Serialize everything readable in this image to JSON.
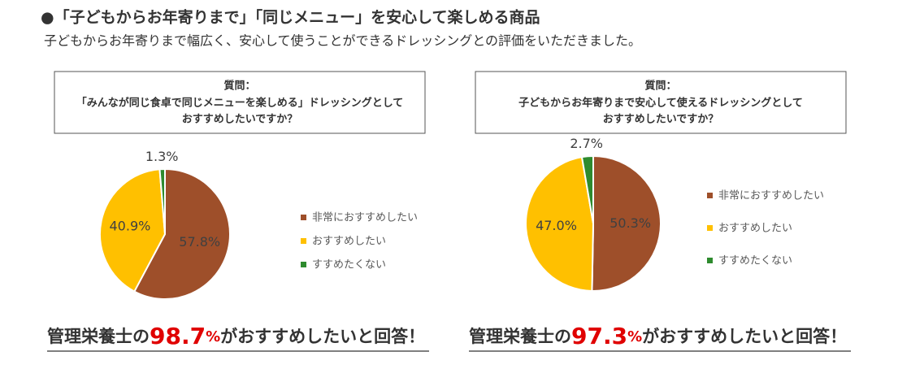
{
  "header": {
    "title": "●「子どもからお年寄りまで」「同じメニュー」を安心して楽しめる商品",
    "subtitle": "子どもからお年寄りまで幅広く、安心して使うことができるドレッシングとの評価をいただきました。"
  },
  "chart_data": [
    {
      "type": "pie",
      "title": "質問：",
      "question": [
        "「みんなが同じ食卓で同じメニューを楽しめる」ドレッシングとして",
        "おすすめしたいですか？"
      ],
      "categories": [
        "非常におすすめしたい",
        "おすすめしたい",
        "すすめたくない"
      ],
      "values": [
        57.8,
        40.9,
        1.3
      ],
      "value_labels": [
        "57.8%",
        "40.9%",
        "1.3%"
      ],
      "label_position": [
        "inside",
        "inside",
        "outside"
      ],
      "colors": [
        "#9e4f2a",
        "#ffc000",
        "#2e8b2e"
      ],
      "legend": "right",
      "footer": {
        "prefix": "管理栄養士の",
        "value": 98.7,
        "unit": "%",
        "suffix": "がおすすめしたいと回答！"
      }
    },
    {
      "type": "pie",
      "title": "質問：",
      "question": [
        "子どもからお年寄りまで安心して使えるドレッシングとして",
        "おすすめしたいですか？"
      ],
      "categories": [
        "非常におすすめしたい",
        "おすすめしたい",
        "すすめたくない"
      ],
      "values": [
        50.3,
        47.0,
        2.7
      ],
      "value_labels": [
        "50.3%",
        "47.0%",
        "2.7%"
      ],
      "label_position": [
        "inside",
        "inside",
        "outside"
      ],
      "colors": [
        "#9e4f2a",
        "#ffc000",
        "#2e8b2e"
      ],
      "legend": "right",
      "footer": {
        "prefix": "管理栄養士の",
        "value": 97.3,
        "unit": "%",
        "suffix": "がおすすめしたいと回答！"
      }
    }
  ]
}
